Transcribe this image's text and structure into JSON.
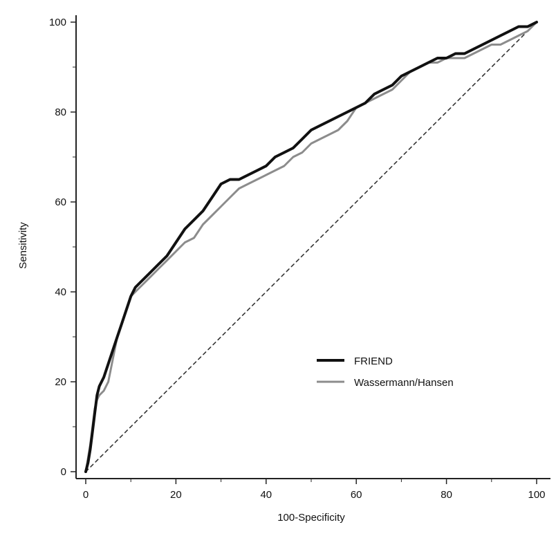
{
  "chart_data": {
    "type": "line",
    "title": "",
    "xlabel": "100-Specificity",
    "ylabel": "Sensitivity",
    "xlim": [
      0,
      100
    ],
    "ylim": [
      0,
      100
    ],
    "xticks": [
      "0",
      "20",
      "40",
      "60",
      "80",
      "100"
    ],
    "yticks": [
      "0",
      "20",
      "40",
      "60",
      "80",
      "100"
    ],
    "grid": false,
    "legend_position": "lower-right",
    "series": [
      {
        "name": "FRIEND",
        "color": "#111111",
        "x": [
          0,
          0.5,
          1,
          1.5,
          2,
          2.5,
          3,
          4,
          5,
          6,
          7,
          8,
          9,
          10,
          11,
          12,
          14,
          16,
          18,
          20,
          22,
          24,
          26,
          28,
          30,
          32,
          34,
          36,
          38,
          40,
          42,
          44,
          46,
          48,
          50,
          52,
          54,
          56,
          58,
          60,
          62,
          64,
          66,
          68,
          70,
          72,
          74,
          76,
          78,
          80,
          82,
          84,
          86,
          88,
          90,
          92,
          94,
          96,
          98,
          100
        ],
        "y": [
          0,
          2,
          5,
          9,
          13,
          17,
          19,
          21,
          24,
          27,
          30,
          33,
          36,
          39,
          41,
          42,
          44,
          46,
          48,
          51,
          54,
          56,
          58,
          61,
          64,
          65,
          65,
          66,
          67,
          68,
          70,
          71,
          72,
          74,
          76,
          77,
          78,
          79,
          80,
          81,
          82,
          84,
          85,
          86,
          88,
          89,
          90,
          91,
          92,
          92,
          93,
          93,
          94,
          95,
          96,
          97,
          98,
          99,
          99,
          100
        ]
      },
      {
        "name": "Wassermann/Hansen",
        "color": "#8c8c8c",
        "x": [
          0,
          0.5,
          1,
          1.5,
          2,
          2.5,
          3,
          4,
          5,
          6,
          7,
          8,
          9,
          10,
          11,
          12,
          14,
          16,
          18,
          20,
          22,
          24,
          26,
          28,
          30,
          32,
          34,
          36,
          38,
          40,
          42,
          44,
          46,
          48,
          50,
          52,
          54,
          56,
          58,
          60,
          62,
          64,
          66,
          68,
          70,
          72,
          74,
          76,
          78,
          80,
          82,
          84,
          86,
          88,
          90,
          92,
          94,
          96,
          98,
          100
        ],
        "y": [
          0,
          3,
          6,
          10,
          14,
          16,
          17,
          18,
          20,
          25,
          30,
          33,
          36,
          39,
          40,
          41,
          43,
          45,
          47,
          49,
          51,
          52,
          55,
          57,
          59,
          61,
          63,
          64,
          65,
          66,
          67,
          68,
          70,
          71,
          73,
          74,
          75,
          76,
          78,
          81,
          82,
          83,
          84,
          85,
          87,
          89,
          90,
          91,
          91,
          92,
          92,
          92,
          93,
          94,
          95,
          95,
          96,
          97,
          98,
          100
        ]
      },
      {
        "name": "",
        "style": "dashed",
        "color": "#333333",
        "x": [
          0,
          100
        ],
        "y": [
          0,
          100
        ]
      }
    ]
  }
}
